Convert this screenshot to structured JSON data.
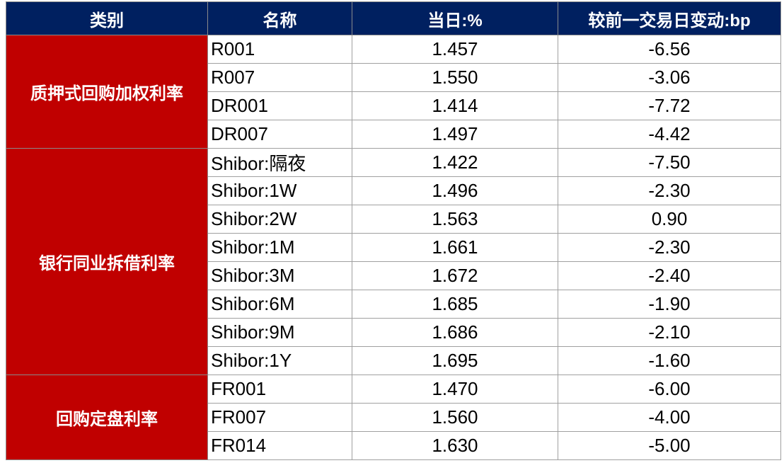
{
  "table": {
    "columns": [
      "类别",
      "名称",
      "当日:%",
      "较前一交易日变动:bp"
    ],
    "groups": [
      {
        "category": "质押式回购加权利率",
        "rows": [
          [
            "R001",
            "1.457",
            "-6.56"
          ],
          [
            "R007",
            "1.550",
            "-3.06"
          ],
          [
            "DR001",
            "1.414",
            "-7.72"
          ],
          [
            "DR007",
            "1.497",
            "-4.42"
          ]
        ]
      },
      {
        "category": "银行同业拆借利率",
        "rows": [
          [
            "Shibor:隔夜",
            "1.422",
            "-7.50"
          ],
          [
            "Shibor:1W",
            "1.496",
            "-2.30"
          ],
          [
            "Shibor:2W",
            "1.563",
            "0.90"
          ],
          [
            "Shibor:1M",
            "1.661",
            "-2.30"
          ],
          [
            "Shibor:3M",
            "1.672",
            "-2.40"
          ],
          [
            "Shibor:6M",
            "1.685",
            "-1.90"
          ],
          [
            "Shibor:9M",
            "1.686",
            "-2.10"
          ],
          [
            "Shibor:1Y",
            "1.695",
            "-1.60"
          ]
        ]
      },
      {
        "category": "回购定盘利率",
        "rows": [
          [
            "FR001",
            "1.470",
            "-6.00"
          ],
          [
            "FR007",
            "1.560",
            "-4.00"
          ],
          [
            "FR014",
            "1.630",
            "-5.00"
          ]
        ]
      }
    ]
  }
}
